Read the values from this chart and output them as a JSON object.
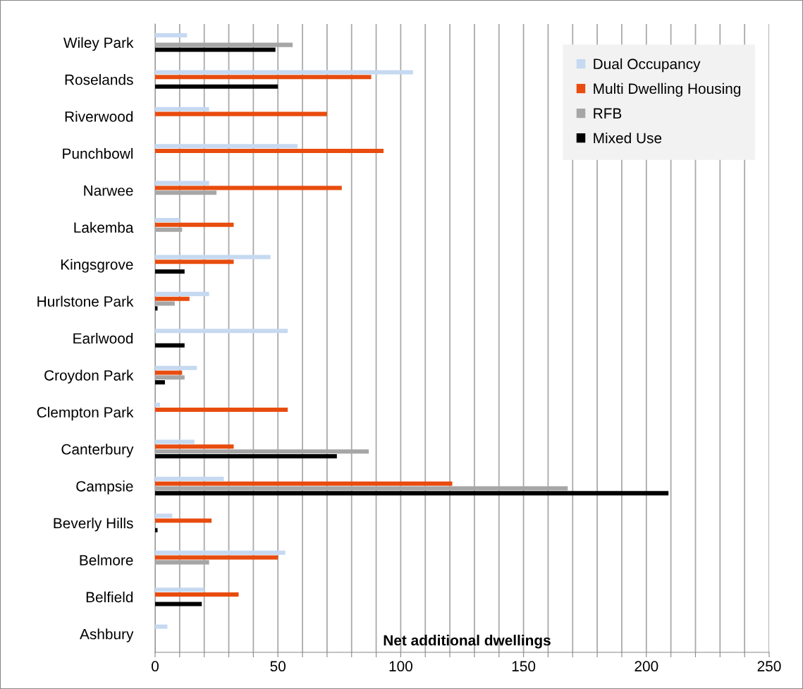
{
  "chart_data": {
    "type": "bar",
    "orientation": "horizontal",
    "xlabel": "Net additional dwellings",
    "categories": [
      "Wiley Park",
      "Roselands",
      "Riverwood",
      "Punchbowl",
      "Narwee",
      "Lakemba",
      "Kingsgrove",
      "Hurlstone Park",
      "Earlwood",
      "Croydon Park",
      "Clempton Park",
      "Canterbury",
      "Campsie",
      "Beverly Hills",
      "Belmore",
      "Belfield",
      "Ashbury"
    ],
    "series": [
      {
        "name": "Dual Occupancy",
        "color": "#c6d9f1",
        "values": [
          13,
          105,
          22,
          58,
          22,
          10,
          47,
          22,
          54,
          17,
          2,
          16,
          28,
          7,
          53,
          20,
          5
        ]
      },
      {
        "name": "Multi Dwelling Housing",
        "color": "#e84c0e",
        "values": [
          null,
          88,
          70,
          93,
          76,
          32,
          32,
          14,
          null,
          11,
          54,
          32,
          121,
          23,
          50,
          34,
          null
        ]
      },
      {
        "name": "RFB",
        "color": "#a6a6a6",
        "values": [
          56,
          null,
          null,
          null,
          25,
          11,
          null,
          8,
          null,
          12,
          null,
          87,
          168,
          null,
          22,
          null,
          null
        ]
      },
      {
        "name": "Mixed Use",
        "color": "#000000",
        "values": [
          49,
          50,
          null,
          null,
          null,
          null,
          12,
          1,
          12,
          4,
          null,
          74,
          209,
          1,
          null,
          19,
          null
        ]
      }
    ],
    "xlim": [
      0,
      250
    ],
    "xticks": [
      0,
      {
        "value": 10,
        "label": null
      },
      {
        "value": 20,
        "label": null
      },
      {
        "value": 30,
        "label": null
      },
      {
        "value": 40,
        "label": null
      },
      50,
      {
        "value": 60,
        "label": null
      },
      {
        "value": 70,
        "label": null
      },
      {
        "value": 80,
        "label": null
      },
      {
        "value": 90,
        "label": null
      },
      100,
      {
        "value": 110,
        "label": null
      },
      {
        "value": 120,
        "label": null
      },
      {
        "value": 130,
        "label": null
      },
      {
        "value": 140,
        "label": null
      },
      150,
      {
        "value": 160,
        "label": null
      },
      {
        "value": 170,
        "label": null
      },
      {
        "value": 180,
        "label": null
      },
      {
        "value": 190,
        "label": null
      },
      200,
      {
        "value": 210,
        "label": null
      },
      {
        "value": 220,
        "label": null
      },
      {
        "value": 230,
        "label": null
      },
      {
        "value": 240,
        "label": null
      },
      250
    ],
    "grid": "x",
    "legend": "top right"
  }
}
